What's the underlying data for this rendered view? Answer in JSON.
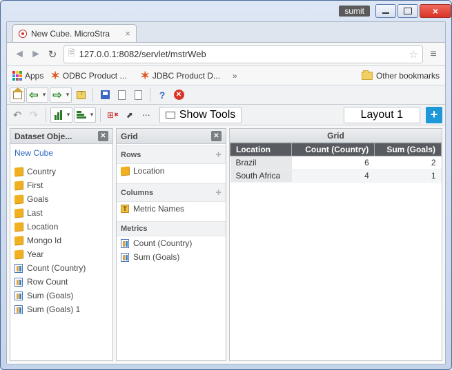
{
  "window": {
    "user": "sumit"
  },
  "browser": {
    "tab_title": "New Cube. MicroStra",
    "url": "127.0.0.1:8082/servlet/mstrWeb",
    "apps_label": "Apps",
    "bookmarks": [
      {
        "label": "ODBC Product ..."
      },
      {
        "label": "JDBC Product D..."
      }
    ],
    "other_bookmarks": "Other bookmarks",
    "overflow": "»"
  },
  "toolbar2": {
    "show_tools": "Show Tools",
    "layout": "Layout 1"
  },
  "panels": {
    "dataset": {
      "title": "Dataset Obje...",
      "link": "New Cube",
      "attributes": [
        "Country",
        "First",
        "Goals",
        "Last",
        "Location",
        "Mongo Id",
        "Year"
      ],
      "metrics": [
        "Count (Country)",
        "Row Count",
        "Sum (Goals)",
        "Sum (Goals) 1"
      ]
    },
    "grid_cfg": {
      "title": "Grid",
      "rows_label": "Rows",
      "rows": [
        "Location"
      ],
      "cols_label": "Columns",
      "cols": [
        "Metric Names"
      ],
      "metrics_label": "Metrics",
      "metrics": [
        "Count (Country)",
        "Sum (Goals)"
      ]
    },
    "grid_data": {
      "title": "Grid",
      "headers": [
        "Location",
        "Count (Country)",
        "Sum (Goals)"
      ],
      "rows": [
        [
          "Brazil",
          "6",
          "2"
        ],
        [
          "South Africa",
          "4",
          "1"
        ]
      ]
    }
  },
  "colors": {
    "accent": "#1e98d6",
    "close": "#d83324",
    "grid_header_bg": "#585c60"
  }
}
